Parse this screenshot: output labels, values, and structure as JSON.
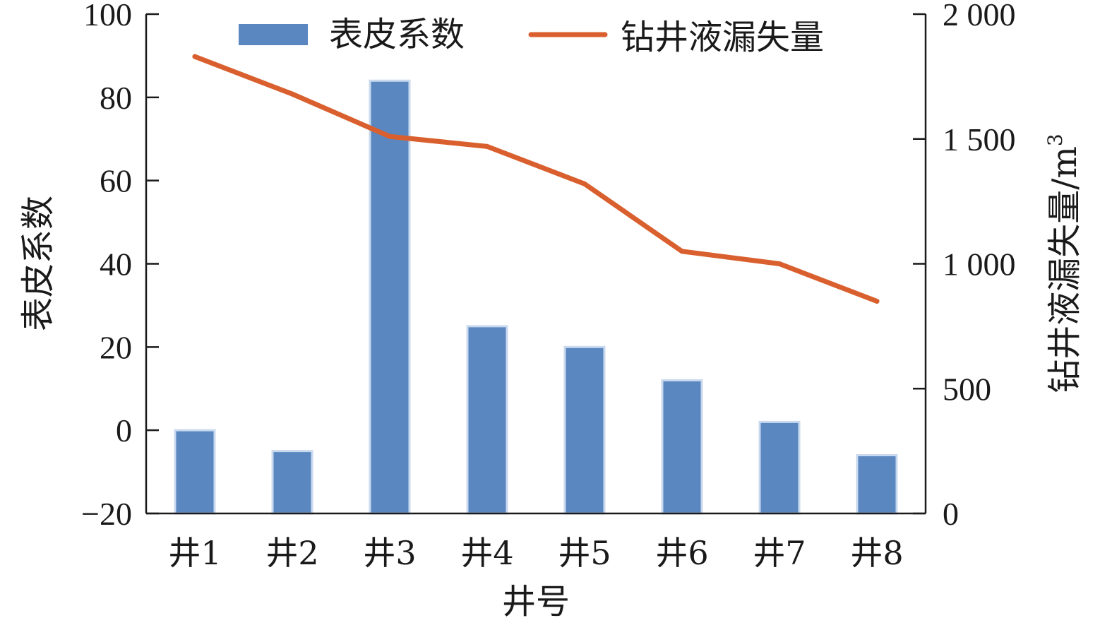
{
  "chart_data": {
    "type": "bar",
    "xlabel": "井号",
    "ylabel_left": "表皮系数",
    "ylabel_right": "钻井液漏失量/m",
    "ylabel_right_superscript": "3",
    "categories": [
      "井1",
      "井2",
      "井3",
      "井4",
      "井5",
      "井6",
      "井7",
      "井8"
    ],
    "series": [
      {
        "name": "表皮系数",
        "type": "bar",
        "axis": "left",
        "color": "#5a87c0",
        "values": [
          0,
          -5,
          84,
          25,
          20,
          12,
          2,
          -6
        ]
      },
      {
        "name": "钻井液漏失量",
        "type": "line",
        "axis": "right",
        "color": "#d9602e",
        "values": [
          1830,
          1680,
          1510,
          1470,
          1320,
          1050,
          1000,
          850
        ]
      }
    ],
    "ylim_left": [
      -20,
      100
    ],
    "ylim_right": [
      0,
      2000
    ],
    "yticks_left": [
      -20,
      0,
      20,
      40,
      60,
      80,
      100
    ],
    "ytick_labels_left": [
      "−20",
      "0",
      "20",
      "40",
      "60",
      "80",
      "100"
    ],
    "yticks_right": [
      0,
      500,
      1000,
      1500,
      2000
    ],
    "ytick_labels_right": [
      "0",
      "500",
      "1 000",
      "1 500",
      "2 000"
    ],
    "legend_position": "top",
    "grid": false
  }
}
